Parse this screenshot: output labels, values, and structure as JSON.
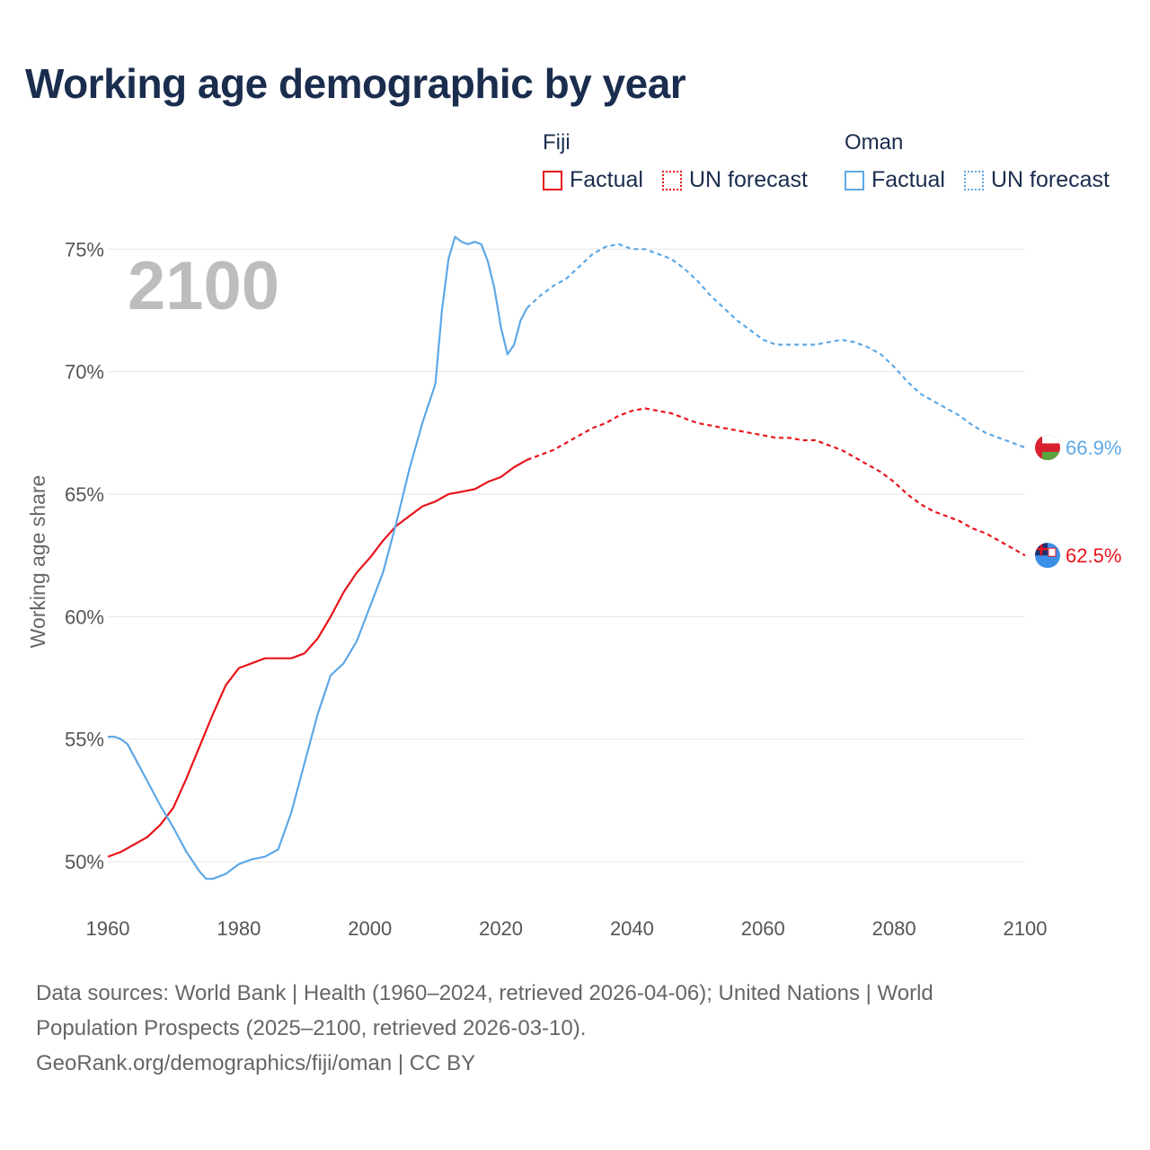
{
  "title": "Working age demographic by year",
  "legend": {
    "groups": [
      {
        "name": "Fiji",
        "items": [
          {
            "label": "Factual"
          },
          {
            "label": "UN forecast"
          }
        ]
      },
      {
        "name": "Oman",
        "items": [
          {
            "label": "Factual"
          },
          {
            "label": "UN forecast"
          }
        ]
      }
    ]
  },
  "colors": {
    "fiji": "#e8141b",
    "oman": "#5ea8e5",
    "grid": "#e6e6e6"
  },
  "footer": {
    "line1": "Data sources: World Bank | Health (1960–2024, retrieved 2026-04-06); United Nations | World",
    "line2": "Population Prospects (2025–2100, retrieved 2026-03-10).",
    "line3": "GeoRank.org/demographics/fiji/oman | CC BY"
  },
  "chart_data": {
    "type": "line",
    "title": "Working age demographic by year",
    "ylabel": "Working age share",
    "xlabel": "",
    "year_label": "2100",
    "xlim": [
      1960,
      2100
    ],
    "ylim": [
      48.5,
      76
    ],
    "x_ticks": [
      "1960",
      "1980",
      "2000",
      "2020",
      "2040",
      "2060",
      "2080",
      "2100"
    ],
    "y_ticks": [
      "50%",
      "55%",
      "60%",
      "65%",
      "70%",
      "75%"
    ],
    "series": [
      {
        "name": "Fiji",
        "color": "#e8141b",
        "end_label": "62.5%",
        "factual": [
          [
            1960,
            50.2
          ],
          [
            1962,
            50.4
          ],
          [
            1964,
            50.7
          ],
          [
            1966,
            51.0
          ],
          [
            1968,
            51.5
          ],
          [
            1970,
            52.2
          ],
          [
            1972,
            53.4
          ],
          [
            1974,
            54.7
          ],
          [
            1976,
            56.0
          ],
          [
            1978,
            57.2
          ],
          [
            1980,
            57.9
          ],
          [
            1982,
            58.1
          ],
          [
            1984,
            58.3
          ],
          [
            1986,
            58.3
          ],
          [
            1988,
            58.3
          ],
          [
            1990,
            58.5
          ],
          [
            1992,
            59.1
          ],
          [
            1994,
            60.0
          ],
          [
            1996,
            61.0
          ],
          [
            1998,
            61.8
          ],
          [
            2000,
            62.4
          ],
          [
            2002,
            63.1
          ],
          [
            2004,
            63.7
          ],
          [
            2006,
            64.1
          ],
          [
            2008,
            64.5
          ],
          [
            2010,
            64.7
          ],
          [
            2012,
            65.0
          ],
          [
            2014,
            65.1
          ],
          [
            2016,
            65.2
          ],
          [
            2018,
            65.5
          ],
          [
            2020,
            65.7
          ],
          [
            2022,
            66.1
          ],
          [
            2024,
            66.4
          ]
        ],
        "forecast": [
          [
            2024,
            66.4
          ],
          [
            2026,
            66.6
          ],
          [
            2028,
            66.8
          ],
          [
            2030,
            67.1
          ],
          [
            2032,
            67.4
          ],
          [
            2034,
            67.7
          ],
          [
            2036,
            67.9
          ],
          [
            2038,
            68.2
          ],
          [
            2040,
            68.4
          ],
          [
            2042,
            68.5
          ],
          [
            2044,
            68.4
          ],
          [
            2046,
            68.3
          ],
          [
            2048,
            68.1
          ],
          [
            2050,
            67.9
          ],
          [
            2052,
            67.8
          ],
          [
            2054,
            67.7
          ],
          [
            2056,
            67.6
          ],
          [
            2058,
            67.5
          ],
          [
            2060,
            67.4
          ],
          [
            2062,
            67.3
          ],
          [
            2064,
            67.3
          ],
          [
            2066,
            67.2
          ],
          [
            2068,
            67.2
          ],
          [
            2070,
            67.0
          ],
          [
            2072,
            66.8
          ],
          [
            2074,
            66.5
          ],
          [
            2076,
            66.2
          ],
          [
            2078,
            65.9
          ],
          [
            2080,
            65.5
          ],
          [
            2082,
            65.0
          ],
          [
            2084,
            64.6
          ],
          [
            2086,
            64.3
          ],
          [
            2088,
            64.1
          ],
          [
            2090,
            63.9
          ],
          [
            2092,
            63.6
          ],
          [
            2094,
            63.4
          ],
          [
            2096,
            63.1
          ],
          [
            2098,
            62.8
          ],
          [
            2100,
            62.5
          ]
        ]
      },
      {
        "name": "Oman",
        "color": "#5ea8e5",
        "end_label": "66.9%",
        "factual": [
          [
            1960,
            55.1
          ],
          [
            1961,
            55.1
          ],
          [
            1962,
            55.0
          ],
          [
            1963,
            54.8
          ],
          [
            1964,
            54.3
          ],
          [
            1966,
            53.3
          ],
          [
            1968,
            52.3
          ],
          [
            1970,
            51.4
          ],
          [
            1972,
            50.4
          ],
          [
            1974,
            49.6
          ],
          [
            1975,
            49.3
          ],
          [
            1976,
            49.3
          ],
          [
            1978,
            49.5
          ],
          [
            1980,
            49.9
          ],
          [
            1982,
            50.1
          ],
          [
            1984,
            50.2
          ],
          [
            1986,
            50.5
          ],
          [
            1988,
            52.0
          ],
          [
            1990,
            54.0
          ],
          [
            1992,
            56.0
          ],
          [
            1994,
            57.6
          ],
          [
            1996,
            58.1
          ],
          [
            1998,
            59.0
          ],
          [
            2000,
            60.4
          ],
          [
            2002,
            61.8
          ],
          [
            2004,
            63.8
          ],
          [
            2006,
            66.0
          ],
          [
            2008,
            67.9
          ],
          [
            2010,
            69.5
          ],
          [
            2011,
            72.5
          ],
          [
            2012,
            74.6
          ],
          [
            2013,
            75.5
          ],
          [
            2014,
            75.3
          ],
          [
            2015,
            75.2
          ],
          [
            2016,
            75.3
          ],
          [
            2017,
            75.2
          ],
          [
            2018,
            74.5
          ],
          [
            2019,
            73.4
          ],
          [
            2020,
            71.8
          ],
          [
            2021,
            70.7
          ],
          [
            2022,
            71.1
          ],
          [
            2023,
            72.1
          ],
          [
            2024,
            72.6
          ]
        ],
        "forecast": [
          [
            2024,
            72.6
          ],
          [
            2026,
            73.1
          ],
          [
            2028,
            73.5
          ],
          [
            2030,
            73.8
          ],
          [
            2032,
            74.3
          ],
          [
            2034,
            74.8
          ],
          [
            2036,
            75.1
          ],
          [
            2038,
            75.2
          ],
          [
            2040,
            75.0
          ],
          [
            2042,
            75.0
          ],
          [
            2044,
            74.8
          ],
          [
            2046,
            74.6
          ],
          [
            2048,
            74.2
          ],
          [
            2050,
            73.7
          ],
          [
            2052,
            73.1
          ],
          [
            2054,
            72.6
          ],
          [
            2056,
            72.1
          ],
          [
            2058,
            71.7
          ],
          [
            2060,
            71.3
          ],
          [
            2062,
            71.1
          ],
          [
            2064,
            71.1
          ],
          [
            2066,
            71.1
          ],
          [
            2068,
            71.1
          ],
          [
            2070,
            71.2
          ],
          [
            2072,
            71.3
          ],
          [
            2074,
            71.2
          ],
          [
            2076,
            71.0
          ],
          [
            2078,
            70.7
          ],
          [
            2080,
            70.2
          ],
          [
            2082,
            69.6
          ],
          [
            2084,
            69.1
          ],
          [
            2086,
            68.8
          ],
          [
            2088,
            68.5
          ],
          [
            2090,
            68.2
          ],
          [
            2092,
            67.8
          ],
          [
            2094,
            67.5
          ],
          [
            2096,
            67.3
          ],
          [
            2098,
            67.1
          ],
          [
            2100,
            66.9
          ]
        ]
      }
    ]
  }
}
